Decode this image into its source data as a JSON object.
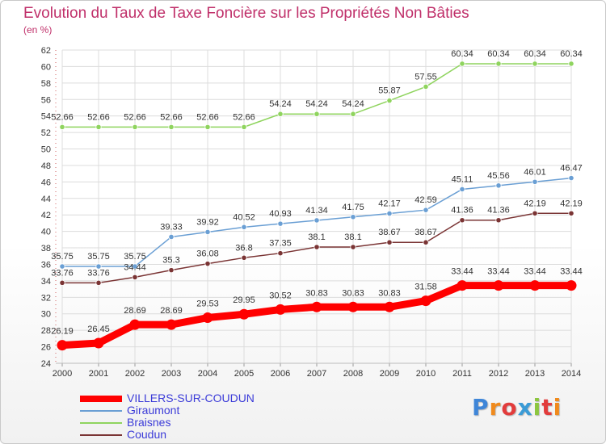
{
  "title": "Evolution du Taux de Taxe Foncière sur les Propriétés Non Bâties",
  "subtitle": "(en %)",
  "logo_text": "Proxiti",
  "colors": {
    "title": "#c0306a",
    "axis_text": "#333333",
    "grid": "#dcdcdc",
    "legend_text": "#3b3bd8"
  },
  "chart_data": {
    "type": "line",
    "title": "Evolution du Taux de Taxe Foncière sur les Propriétés Non Bâties",
    "ylabel": "(en %)",
    "xlabel": "",
    "ylim": [
      24,
      62
    ],
    "y_ticks": [
      24,
      26,
      28,
      30,
      32,
      34,
      36,
      38,
      40,
      42,
      44,
      46,
      48,
      50,
      52,
      54,
      56,
      58,
      60,
      62
    ],
    "grid": true,
    "legend_position": "bottom-left",
    "x": [
      "2000",
      "2001",
      "2002",
      "2003",
      "2004",
      "2005",
      "2006",
      "2007",
      "2008",
      "2009",
      "2010",
      "2011",
      "2012",
      "2013",
      "2014"
    ],
    "series": [
      {
        "name": "VILLERS-SUR-COUDUN",
        "color": "#ff0000",
        "values": [
          26.19,
          26.45,
          28.69,
          28.69,
          29.53,
          29.95,
          30.52,
          30.83,
          30.83,
          30.83,
          31.58,
          33.44,
          33.44,
          33.44,
          33.44
        ],
        "labels": [
          "26.19",
          "26.45",
          "28.69",
          "28.69",
          "29.53",
          "29.95",
          "30.52",
          "30.83",
          "30.83",
          "30.83",
          "31.58",
          "33.44",
          "33.44",
          "33.44",
          "33.44"
        ]
      },
      {
        "name": "Giraumont",
        "color": "#6a9fd4",
        "values": [
          35.75,
          35.75,
          35.75,
          39.33,
          39.92,
          40.52,
          40.93,
          41.34,
          41.75,
          42.17,
          42.59,
          45.11,
          45.56,
          46.01,
          46.47
        ],
        "labels": [
          "35.75",
          "35.75",
          "35.75",
          "39.33",
          "39.92",
          "40.52",
          "40.93",
          "41.34",
          "41.75",
          "42.17",
          "42.59",
          "45.11",
          "45.56",
          "46.01",
          "46.47"
        ]
      },
      {
        "name": "Braisnes",
        "color": "#8fd45e",
        "values": [
          52.66,
          52.66,
          52.66,
          52.66,
          52.66,
          52.66,
          54.24,
          54.24,
          54.24,
          55.87,
          57.55,
          60.34,
          60.34,
          60.34,
          60.34
        ],
        "labels": [
          "52.66",
          "52.66",
          "52.66",
          "52.66",
          "52.66",
          "52.66",
          "54.24",
          "54.24",
          "54.24",
          "55.87",
          "57.55",
          "60.34",
          "60.34",
          "60.34",
          "60.34"
        ]
      },
      {
        "name": "Coudun",
        "color": "#7a3434",
        "values": [
          33.76,
          33.76,
          34.44,
          35.3,
          36.08,
          36.8,
          37.35,
          38.1,
          38.1,
          38.67,
          38.67,
          41.36,
          41.36,
          42.19,
          42.19
        ],
        "labels": [
          "33.76",
          "33.76",
          "34.44",
          "35.3",
          "36.08",
          "36.8",
          "37.35",
          "38.1",
          "38.1",
          "38.67",
          "38.67",
          "41.36",
          "41.36",
          "42.19",
          "42.19"
        ]
      }
    ]
  }
}
